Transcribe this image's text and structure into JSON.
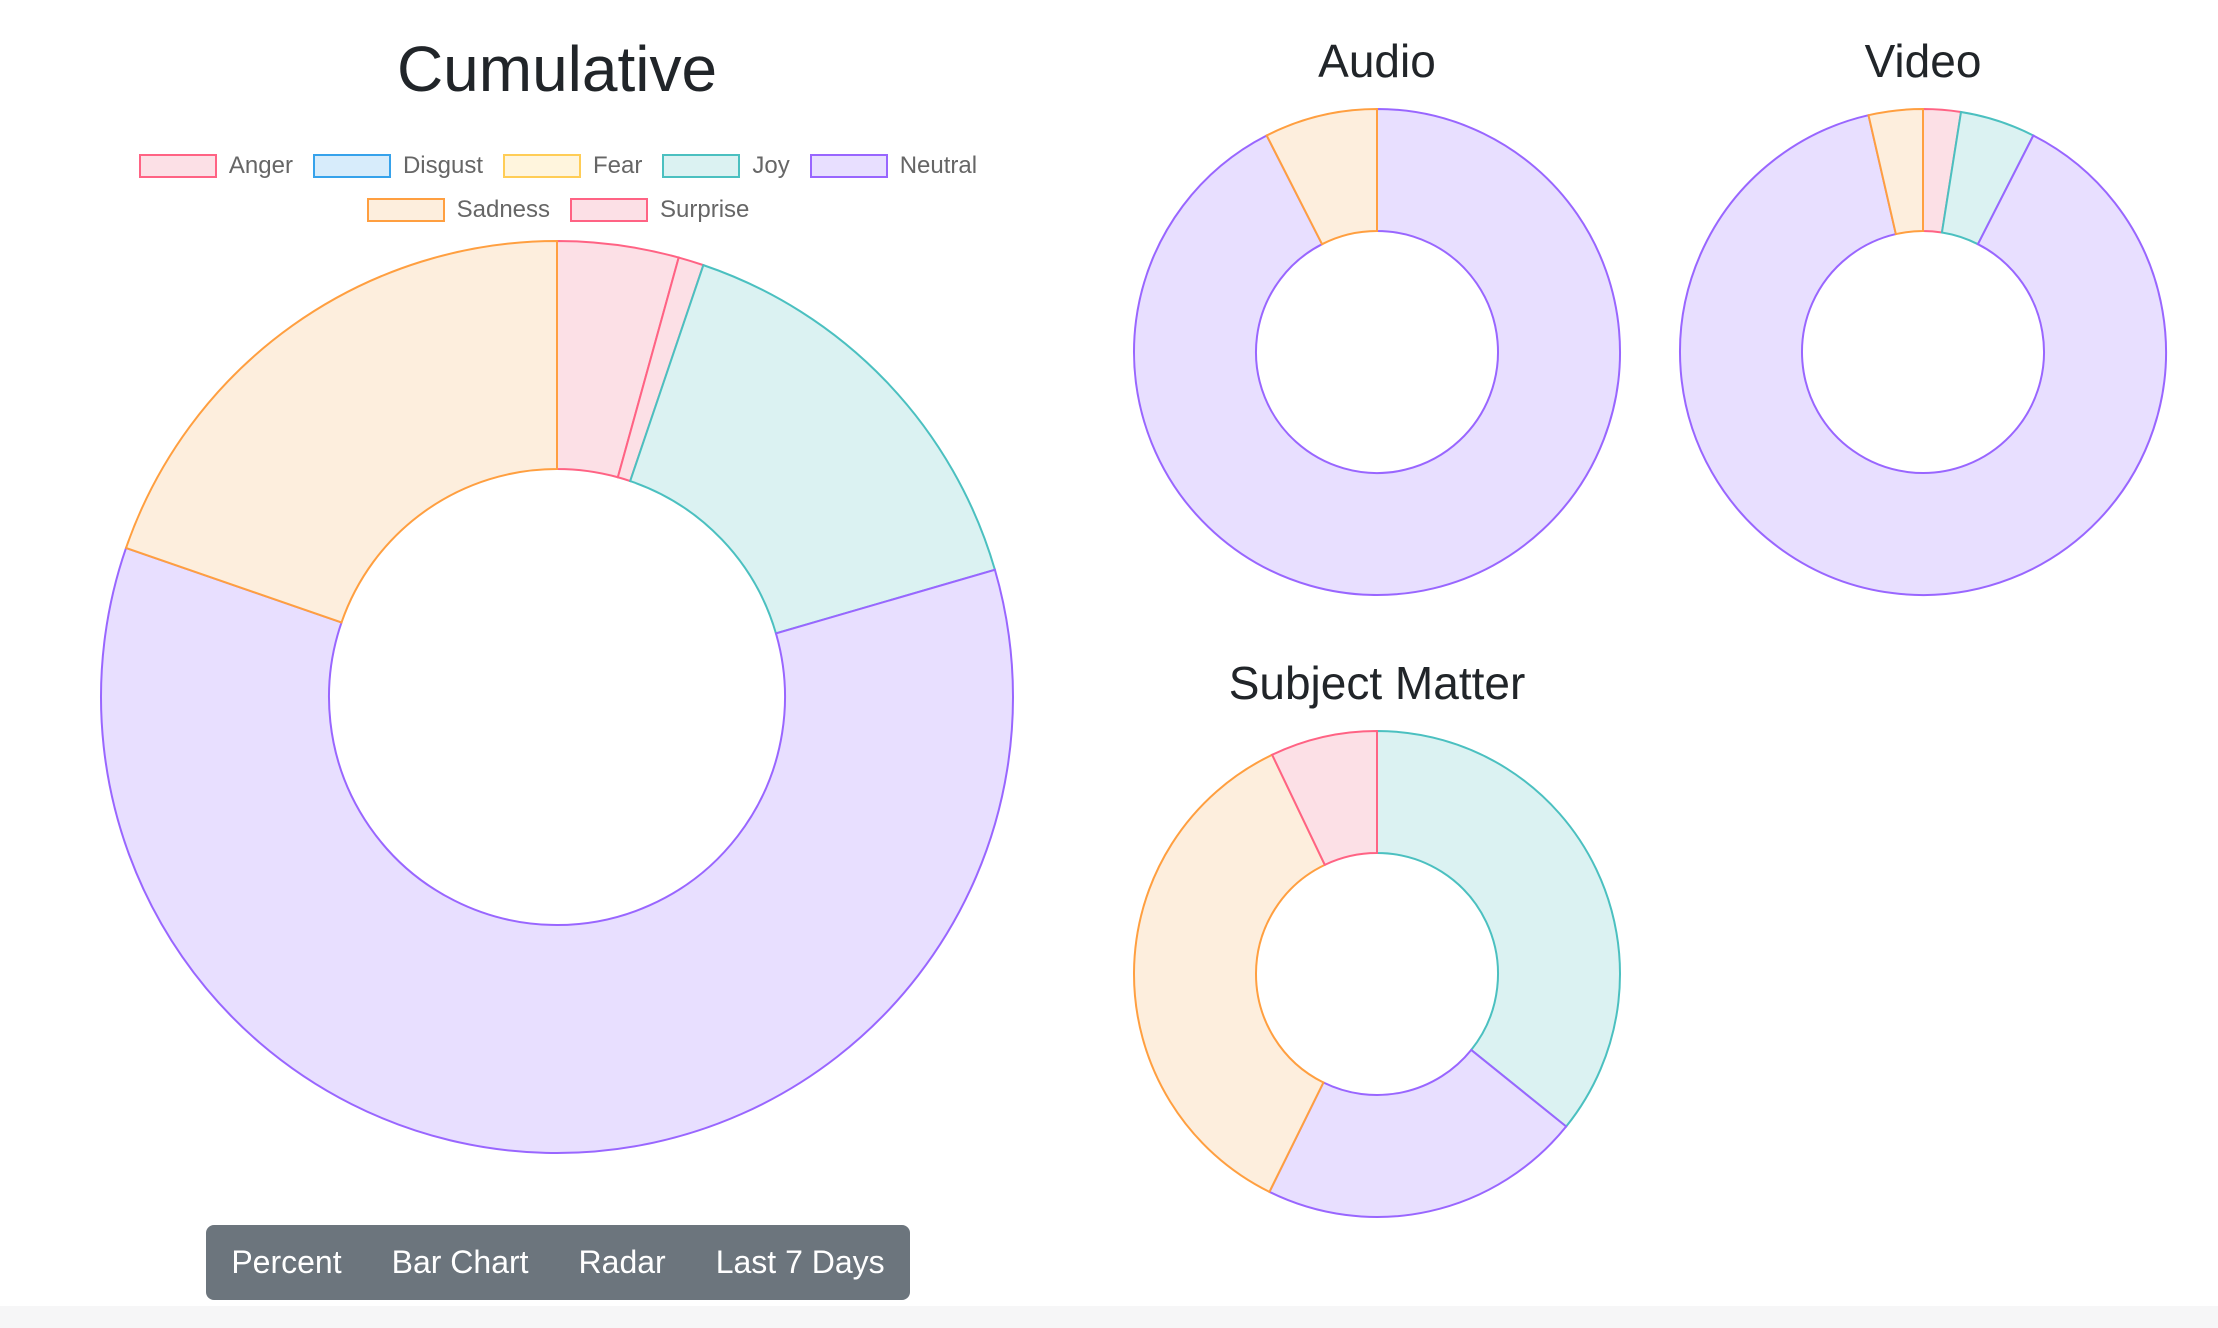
{
  "chart_data": [
    {
      "type": "doughnut",
      "title": "Cumulative",
      "legend": {
        "position": "top",
        "items": [
          "Anger",
          "Disgust",
          "Fear",
          "Joy",
          "Neutral",
          "Sadness",
          "Surprise"
        ]
      },
      "series": [
        {
          "labels": [
            "Surprise",
            "Anger",
            "Joy",
            "Neutral",
            "Sadness",
            "Disgust",
            "Fear"
          ],
          "values": [
            4.3,
            0.9,
            15.3,
            59.8,
            19.7,
            0,
            0
          ]
        }
      ]
    },
    {
      "type": "doughnut",
      "title": "Audio",
      "series": [
        {
          "labels": [
            "Neutral",
            "Sadness"
          ],
          "values": [
            92.5,
            7.5
          ]
        }
      ]
    },
    {
      "type": "doughnut",
      "title": "Video",
      "series": [
        {
          "labels": [
            "Anger",
            "Joy",
            "Neutral",
            "Sadness"
          ],
          "values": [
            2.5,
            5.0,
            88.9,
            3.6
          ]
        }
      ]
    },
    {
      "type": "doughnut",
      "title": "Subject Matter",
      "series": [
        {
          "labels": [
            "Joy",
            "Neutral",
            "Sadness",
            "Surprise"
          ],
          "values": [
            35.8,
            21.5,
            35.6,
            7.1
          ]
        }
      ]
    }
  ],
  "colors": {
    "Anger": {
      "border": "#ff6384",
      "fill": "#fce0e6"
    },
    "Disgust": {
      "border": "#36a2eb",
      "fill": "#d7ecfb"
    },
    "Fear": {
      "border": "#ffcd56",
      "fill": "#fff5dd"
    },
    "Joy": {
      "border": "#4bc0c0",
      "fill": "#dbf2f2"
    },
    "Neutral": {
      "border": "#9966ff",
      "fill": "#e8dfff"
    },
    "Sadness": {
      "border": "#ff9f40",
      "fill": "#fdeedd"
    },
    "Surprise": {
      "border": "#ff6384",
      "fill": "#fce0e6"
    }
  },
  "buttons": [
    "Percent",
    "Bar Chart",
    "Radar",
    "Last 7 Days"
  ]
}
